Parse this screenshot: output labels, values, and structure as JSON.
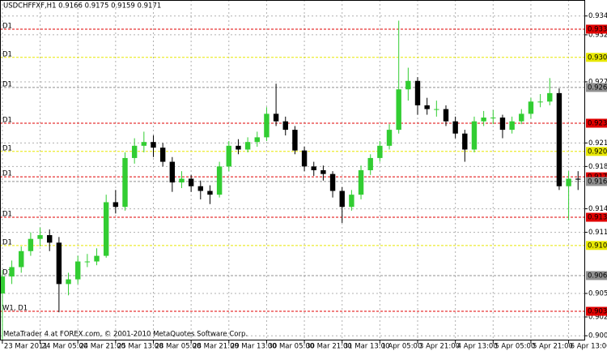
{
  "chart_data": {
    "type": "candlestick",
    "title": "USDCHFFXF,H1  0.9166 0.9175 0.9159 0.9171",
    "footer": "MetaTrader 4 at FOREX.com, © 2001-2010 MetaQuotes Software Corp.",
    "up_color": "#32cd32",
    "down_color": "#000000",
    "grid": true,
    "xlim": [
      -1,
      247
    ],
    "ylim": [
      0.9,
      0.9362
    ],
    "xticks": [
      {
        "value": 0,
        "label": "23 Mar 2011"
      },
      {
        "value": 16,
        "label": "24 Mar 05:00"
      },
      {
        "value": 32,
        "label": "24 Mar 21:00"
      },
      {
        "value": 48,
        "label": "25 Mar 13:00"
      },
      {
        "value": 64,
        "label": "28 Mar 05:00"
      },
      {
        "value": 80,
        "label": "28 Mar 21:00"
      },
      {
        "value": 96,
        "label": "29 Mar 13:00"
      },
      {
        "value": 112,
        "label": "30 Mar 05:00"
      },
      {
        "value": 128,
        "label": "30 Mar 21:00"
      },
      {
        "value": 144,
        "label": "31 Mar 13:00"
      },
      {
        "value": 160,
        "label": "1 Apr 05:00"
      },
      {
        "value": 176,
        "label": "3 Apr 21:00"
      },
      {
        "value": 192,
        "label": "4 Apr 13:00"
      },
      {
        "value": 208,
        "label": "5 Apr 05:00"
      },
      {
        "value": 224,
        "label": "5 Apr 21:00"
      },
      {
        "value": 240,
        "label": "6 Apr 13:00"
      }
    ],
    "yticks": [
      0.9345,
      0.9325,
      0.9275,
      {
        "value": 0.921,
        "label": "0.9210"
      },
      0.9185,
      {
        "value": 0.914,
        "label": "0.9140"
      },
      0.9115,
      {
        "value": 0.905,
        "label": "0.9050"
      },
      0.9025,
      0.9005
    ],
    "levels": [
      {
        "value": 0.9331,
        "color": "#e00000",
        "label": "D1"
      },
      {
        "value": 0.9301,
        "color": "#e8e800",
        "label": "D1"
      },
      {
        "value": 0.9269,
        "color": "#909090",
        "label": "D1"
      },
      {
        "value": 0.9231,
        "color": "#e00000",
        "label": "D1"
      },
      {
        "value": 0.9201,
        "color": "#e8e800",
        "label": "D1"
      },
      {
        "value": 0.9174,
        "color": "#e00000",
        "label": "D1"
      },
      {
        "value": 0.9169,
        "color": "#909090"
      },
      {
        "value": 0.9131,
        "color": "#e00000",
        "label": "D1"
      },
      {
        "value": 0.9101,
        "color": "#e8e800",
        "label": "D1"
      },
      {
        "value": 0.9069,
        "color": "#909090",
        "label": "D1"
      },
      {
        "value": 0.9031,
        "color": "#e00000",
        "label": "W1, D1"
      }
    ],
    "x": [
      0,
      4,
      8,
      12,
      16,
      20,
      24,
      28,
      32,
      36,
      40,
      44,
      48,
      52,
      56,
      60,
      64,
      68,
      72,
      76,
      80,
      84,
      88,
      92,
      96,
      100,
      104,
      108,
      112,
      116,
      120,
      124,
      128,
      132,
      136,
      140,
      144,
      148,
      152,
      156,
      160,
      164,
      168,
      172,
      176,
      180,
      184,
      188,
      192,
      196,
      200,
      204,
      208,
      212,
      216,
      220,
      224,
      228,
      232,
      236,
      240,
      244
    ],
    "open": [
      0.905,
      0.9068,
      0.9078,
      0.9095,
      0.9108,
      0.9112,
      0.9104,
      0.906,
      0.9065,
      0.9084,
      0.9084,
      0.909,
      0.9147,
      0.9142,
      0.9194,
      0.9207,
      0.9211,
      0.9205,
      0.919,
      0.9168,
      0.9172,
      0.9164,
      0.9159,
      0.9155,
      0.9185,
      0.9207,
      0.9203,
      0.9211,
      0.9216,
      0.9241,
      0.9233,
      0.9224,
      0.9202,
      0.9185,
      0.9181,
      0.9177,
      0.9159,
      0.9142,
      0.9155,
      0.9181,
      0.9194,
      0.9207,
      0.9224,
      0.9267,
      0.9276,
      0.925,
      0.9246,
      0.9246,
      0.9233,
      0.922,
      0.9203,
      0.9233,
      0.9237,
      0.9237,
      0.9224,
      0.9233,
      0.9241,
      0.9254,
      0.9254,
      0.9263,
      0.9164,
      0.9172
    ],
    "high": [
      0.9075,
      0.9085,
      0.91,
      0.9115,
      0.912,
      0.9118,
      0.911,
      0.9072,
      0.909,
      0.9092,
      0.9098,
      0.9155,
      0.916,
      0.92,
      0.9215,
      0.9222,
      0.9218,
      0.921,
      0.9195,
      0.918,
      0.9176,
      0.917,
      0.9165,
      0.919,
      0.9212,
      0.9214,
      0.9216,
      0.9222,
      0.9248,
      0.9273,
      0.9238,
      0.9228,
      0.9206,
      0.919,
      0.9186,
      0.918,
      0.9163,
      0.916,
      0.9186,
      0.9198,
      0.9212,
      0.923,
      0.934,
      0.929,
      0.928,
      0.9258,
      0.9255,
      0.925,
      0.9238,
      0.9224,
      0.9238,
      0.9244,
      0.9245,
      0.924,
      0.9238,
      0.9246,
      0.9258,
      0.9262,
      0.9279,
      0.9268,
      0.918,
      0.918
    ],
    "low": [
      0.9,
      0.906,
      0.9072,
      0.909,
      0.91,
      0.9095,
      0.903,
      0.9048,
      0.906,
      0.9078,
      0.908,
      0.9088,
      0.9135,
      0.9138,
      0.9188,
      0.92,
      0.9195,
      0.9185,
      0.9158,
      0.9162,
      0.9158,
      0.915,
      0.9145,
      0.9152,
      0.918,
      0.9198,
      0.92,
      0.9206,
      0.9212,
      0.9228,
      0.9218,
      0.9198,
      0.918,
      0.9175,
      0.917,
      0.9152,
      0.9125,
      0.9138,
      0.915,
      0.9176,
      0.919,
      0.9203,
      0.922,
      0.9255,
      0.924,
      0.924,
      0.9238,
      0.9228,
      0.9215,
      0.919,
      0.92,
      0.9228,
      0.923,
      0.9215,
      0.922,
      0.923,
      0.9236,
      0.9248,
      0.925,
      0.916,
      0.9128,
      0.916
    ],
    "close": [
      0.9068,
      0.9078,
      0.9095,
      0.9108,
      0.9112,
      0.9104,
      0.906,
      0.9065,
      0.9084,
      0.9084,
      0.909,
      0.9147,
      0.9142,
      0.9194,
      0.9207,
      0.9211,
      0.9205,
      0.919,
      0.9168,
      0.9172,
      0.9164,
      0.9159,
      0.9155,
      0.9185,
      0.9207,
      0.9203,
      0.9211,
      0.9216,
      0.9241,
      0.9233,
      0.9224,
      0.9202,
      0.9185,
      0.9181,
      0.9177,
      0.9159,
      0.9142,
      0.9155,
      0.9181,
      0.9194,
      0.9207,
      0.9224,
      0.9267,
      0.9276,
      0.925,
      0.9246,
      0.9246,
      0.9233,
      0.922,
      0.9203,
      0.9233,
      0.9237,
      0.9237,
      0.9224,
      0.9233,
      0.9241,
      0.9254,
      0.9254,
      0.9263,
      0.9164,
      0.9172,
      0.9171
    ]
  }
}
